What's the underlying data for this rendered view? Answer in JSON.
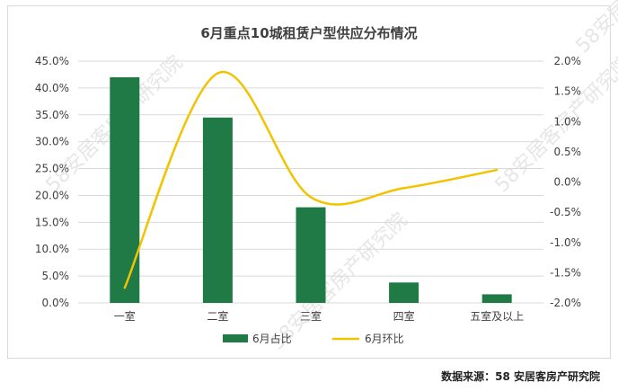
{
  "chart_data": {
    "type": "bar",
    "title": "6月重点10城租赁户型供应分布情况",
    "categories": [
      "一室",
      "二室",
      "三室",
      "四室",
      "五室及以上"
    ],
    "y_left": {
      "ylim": [
        0,
        45
      ],
      "ticks": [
        "45.0%",
        "40.0%",
        "35.0%",
        "30.0%",
        "25.0%",
        "20.0%",
        "15.0%",
        "10.0%",
        "5.0%",
        "0.0%"
      ]
    },
    "y_right": {
      "ylim": [
        -2.0,
        2.0
      ],
      "ticks": [
        "2.0%",
        "1.5%",
        "1.0%",
        "0.5%",
        "0.0%",
        "-0.5%",
        "-1.0%",
        "-1.5%",
        "-2.0%"
      ]
    },
    "series": [
      {
        "name": "6月占比",
        "type": "bar",
        "axis": "left",
        "color": "#1f7a45",
        "values": [
          42.0,
          34.5,
          17.8,
          3.8,
          1.6
        ]
      },
      {
        "name": "6月环比",
        "type": "line",
        "axis": "right",
        "color": "#f2c300",
        "values": [
          -1.75,
          1.8,
          -0.25,
          -0.1,
          0.2
        ]
      }
    ],
    "legend_position": "bottom",
    "grid": true
  },
  "watermark": [
    "58安居客房产研究院",
    "58安居客房产研究院",
    "58安居客房产研究院",
    "58安居客房产研究院"
  ],
  "source": "数据来源：58 安居客房产研究院"
}
